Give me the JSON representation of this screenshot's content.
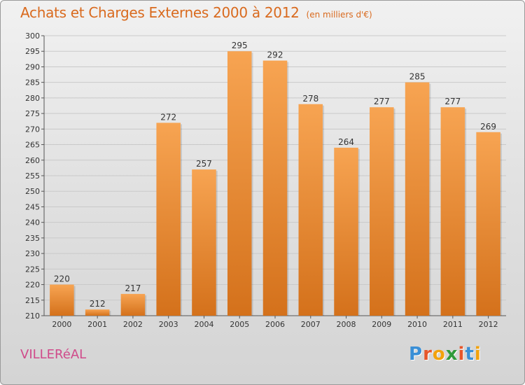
{
  "title": "Achats et Charges Externes 2000 à 2012",
  "unit_label": "(en milliers d'€)",
  "place": "VILLERéAL",
  "logo": {
    "letters": [
      "P",
      "r",
      "o",
      "x",
      "i",
      "t",
      "i"
    ],
    "colors": [
      "#3a8fd6",
      "#e6562b",
      "#f2a20c",
      "#2f9a3a",
      "#e6562b",
      "#3a8fd6",
      "#f2a20c"
    ]
  },
  "colors": {
    "title": "#d96a1e",
    "place": "#d04a8a",
    "bar_light": "#f7a452",
    "bar_dark": "#d4711b"
  },
  "chart_data": {
    "type": "bar",
    "title": "Achats et Charges Externes 2000 à 2012",
    "unit": "(en milliers d'€)",
    "categories": [
      "2000",
      "2001",
      "2002",
      "2003",
      "2004",
      "2005",
      "2006",
      "2007",
      "2008",
      "2009",
      "2010",
      "2011",
      "2012"
    ],
    "values": [
      220,
      212,
      217,
      272,
      257,
      295,
      292,
      278,
      264,
      277,
      285,
      277,
      269
    ],
    "ylim": [
      210,
      300
    ],
    "ytick_step": 5,
    "grid": "horizontal"
  }
}
